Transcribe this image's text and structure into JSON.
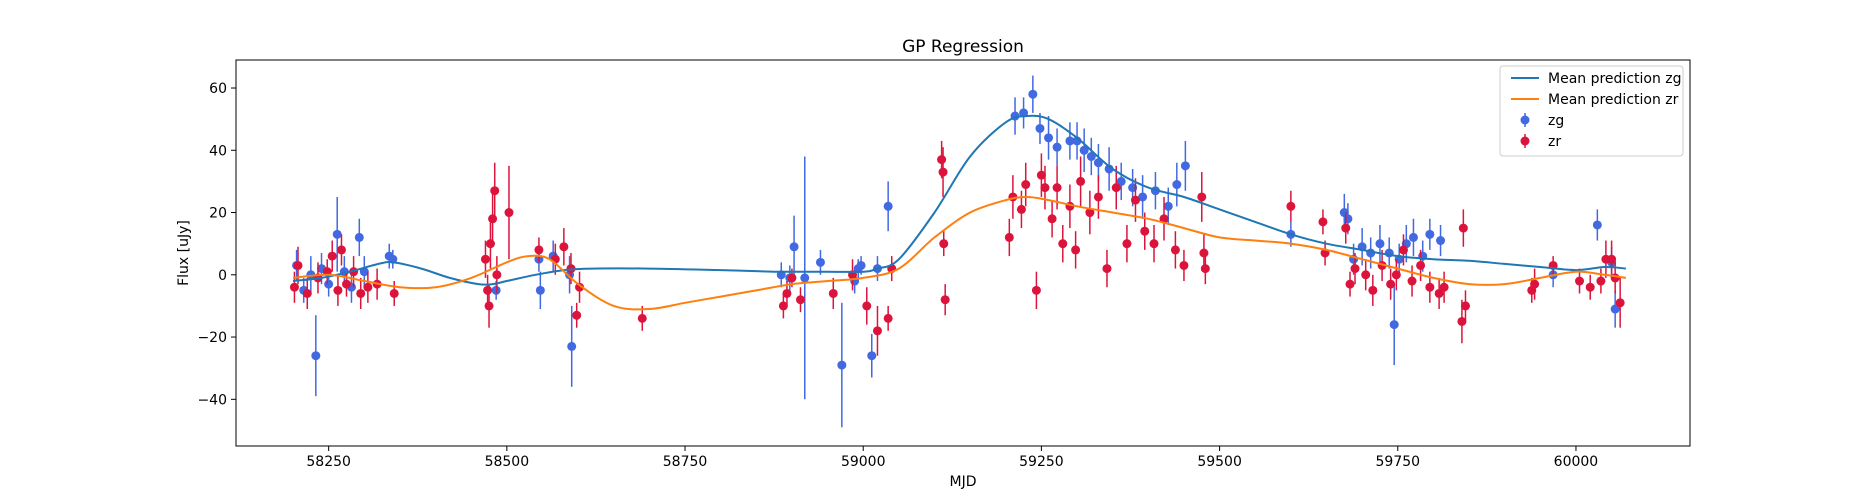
{
  "chart_data": {
    "type": "scatter",
    "title": "GP Regression",
    "xlabel": "MJD",
    "ylabel": "Flux [uJy]",
    "xlim": [
      58120,
      60160
    ],
    "ylim": [
      -55,
      69
    ],
    "xticks": [
      58250,
      58500,
      58750,
      59000,
      59250,
      59500,
      59750,
      60000
    ],
    "yticks": [
      -40,
      -20,
      0,
      20,
      40,
      60
    ],
    "grid": false,
    "legend_position": "top-right",
    "colors": {
      "mean_zg": "#1f77b4",
      "mean_zr": "#ff7f0e",
      "zg": "#4169e1",
      "zr": "#dc143c"
    },
    "series": [
      {
        "name": "Mean prediction zg",
        "kind": "line",
        "x": [
          58200,
          58240,
          58280,
          58320,
          58340,
          58380,
          58420,
          58460,
          58480,
          58500,
          58540,
          58580,
          58620,
          58700,
          58800,
          58880,
          58950,
          59000,
          59020,
          59050,
          59100,
          59150,
          59200,
          59230,
          59260,
          59300,
          59350,
          59400,
          59450,
          59500,
          59550,
          59600,
          59650,
          59700,
          59750,
          59800,
          59850,
          59900,
          59950,
          60000,
          60040,
          60070
        ],
        "y": [
          -2,
          -1,
          1,
          3.5,
          4,
          2,
          -1,
          -3,
          -3,
          -2,
          0,
          1.5,
          2,
          2,
          1.5,
          1,
          1,
          1,
          2,
          5,
          20,
          38,
          49,
          51,
          50,
          44,
          34,
          28,
          25,
          21,
          17,
          13,
          10,
          8,
          6,
          5,
          4.5,
          3.5,
          2.5,
          1.5,
          2.5,
          2
        ]
      },
      {
        "name": "Mean prediction zr",
        "kind": "line",
        "x": [
          58200,
          58250,
          58300,
          58350,
          58400,
          58450,
          58500,
          58530,
          58560,
          58600,
          58650,
          58700,
          58750,
          58800,
          58850,
          58900,
          58950,
          59000,
          59050,
          59100,
          59150,
          59200,
          59230,
          59260,
          59300,
          59350,
          59400,
          59450,
          59500,
          59550,
          59600,
          59650,
          59700,
          59750,
          59800,
          59850,
          59900,
          59950,
          60000,
          60040,
          60070
        ],
        "y": [
          -1,
          0,
          -2,
          -4,
          -4,
          -1,
          4,
          6,
          5,
          -3,
          -10,
          -11,
          -9,
          -7,
          -5,
          -3,
          -2,
          -1,
          2,
          12,
          20,
          24,
          25,
          24,
          22,
          20,
          18,
          15,
          12,
          11,
          10,
          8,
          5,
          2,
          -1,
          -3,
          -3,
          -1,
          1,
          0,
          -1
        ]
      },
      {
        "name": "zg",
        "kind": "errorbar",
        "x": [
          58205,
          58215,
          58225,
          58232,
          58240,
          58250,
          58262,
          58272,
          58282,
          58293,
          58300,
          58335,
          58340,
          58485,
          58545,
          58547,
          58565,
          58588,
          58591,
          58885,
          58897,
          58903,
          58918,
          58940,
          58970,
          58988,
          58993,
          58997,
          59012,
          59020,
          59035,
          59213,
          59225,
          59238,
          59248,
          59260,
          59272,
          59290,
          59300,
          59310,
          59320,
          59330,
          59345,
          59362,
          59378,
          59392,
          59410,
          59428,
          59440,
          59452,
          59600,
          59675,
          59680,
          59688,
          59700,
          59712,
          59725,
          59738,
          59745,
          59752,
          59762,
          59772,
          59785,
          59795,
          59810,
          59968,
          60030,
          60050,
          60055
        ],
        "y": [
          3,
          -5,
          0,
          -26,
          2,
          -3,
          13,
          1,
          -4,
          12,
          1,
          6,
          5,
          -5,
          5,
          -5,
          6,
          0,
          -23,
          0,
          -1,
          9,
          -1,
          4,
          -29,
          -2,
          2,
          3,
          -26,
          2,
          22,
          51,
          52,
          58,
          47,
          44,
          41,
          43,
          43,
          40,
          38,
          36,
          34,
          30,
          28,
          25,
          27,
          22,
          29,
          35,
          13,
          20,
          18,
          5,
          9,
          7,
          10,
          7,
          -16,
          5,
          10,
          12,
          6,
          13,
          11,
          0,
          16,
          4,
          -11
        ],
        "yerr": [
          5,
          4,
          6,
          13,
          5,
          4,
          12,
          5,
          5,
          6,
          5,
          4,
          3,
          3,
          4,
          6,
          5,
          6,
          13,
          4,
          4,
          10,
          39,
          4,
          20,
          4,
          3,
          3,
          7,
          4,
          8,
          6,
          5,
          6,
          5,
          7,
          6,
          6,
          6,
          7,
          6,
          6,
          7,
          6,
          6,
          7,
          6,
          6,
          7,
          8,
          4,
          6,
          5,
          5,
          6,
          5,
          6,
          5,
          13,
          5,
          6,
          6,
          5,
          5,
          5,
          4,
          5,
          5,
          6
        ]
      },
      {
        "name": "zr",
        "kind": "errorbar",
        "x": [
          58202,
          58207,
          58220,
          58235,
          58248,
          58255,
          58263,
          58268,
          58275,
          58285,
          58295,
          58305,
          58318,
          58342,
          58470,
          58473,
          58475,
          58477,
          58480,
          58483,
          58486,
          58503,
          58545,
          58568,
          58580,
          58590,
          58598,
          58602,
          58690,
          58888,
          58893,
          58900,
          58912,
          58958,
          58985,
          59005,
          59020,
          59035,
          59040,
          59110,
          59112,
          59113,
          59115,
          59205,
          59210,
          59222,
          59228,
          59243,
          59250,
          59255,
          59265,
          59272,
          59280,
          59290,
          59298,
          59305,
          59318,
          59330,
          59342,
          59355,
          59370,
          59382,
          59395,
          59408,
          59422,
          59438,
          59450,
          59475,
          59478,
          59480,
          59600,
          59645,
          59648,
          59677,
          59683,
          59690,
          59705,
          59715,
          59728,
          59740,
          59748,
          59758,
          59770,
          59782,
          59795,
          59808,
          59815,
          59840,
          59842,
          59845,
          59938,
          59942,
          59968,
          60005,
          60020,
          60035,
          60042,
          60050,
          60055,
          60062
        ],
        "y": [
          -4,
          3,
          -6,
          -1,
          1,
          6,
          -5,
          8,
          -3,
          1,
          -6,
          -4,
          -3,
          -6,
          5,
          -5,
          -10,
          10,
          18,
          27,
          0,
          20,
          8,
          5,
          9,
          2,
          -13,
          -4,
          -14,
          -10,
          -6,
          -1,
          -8,
          -6,
          0,
          -10,
          -18,
          -14,
          2,
          37,
          33,
          10,
          -8,
          12,
          25,
          21,
          29,
          -5,
          32,
          28,
          18,
          28,
          10,
          22,
          8,
          30,
          20,
          25,
          2,
          28,
          10,
          24,
          14,
          10,
          18,
          8,
          3,
          25,
          7,
          2,
          22,
          17,
          7,
          15,
          -3,
          2,
          0,
          -5,
          3,
          -3,
          0,
          8,
          -2,
          3,
          -4,
          -6,
          -4,
          -15,
          15,
          -10,
          -5,
          -3,
          3,
          -2,
          -4,
          -2,
          5,
          5,
          -1,
          -9
        ],
        "yerr": [
          5,
          6,
          5,
          5,
          4,
          5,
          5,
          5,
          4,
          5,
          5,
          5,
          5,
          4,
          6,
          5,
          7,
          8,
          9,
          9,
          6,
          15,
          4,
          5,
          6,
          5,
          4,
          5,
          4,
          4,
          4,
          3,
          4,
          5,
          5,
          6,
          8,
          4,
          4,
          6,
          8,
          4,
          5,
          6,
          7,
          6,
          7,
          6,
          7,
          7,
          6,
          7,
          6,
          7,
          6,
          8,
          7,
          7,
          6,
          7,
          6,
          7,
          6,
          6,
          7,
          6,
          5,
          8,
          6,
          5,
          5,
          4,
          4,
          5,
          4,
          5,
          5,
          5,
          5,
          5,
          5,
          5,
          5,
          5,
          5,
          5,
          5,
          7,
          6,
          5,
          4,
          5,
          3,
          4,
          4,
          4,
          6,
          6,
          5,
          8
        ]
      }
    ]
  }
}
